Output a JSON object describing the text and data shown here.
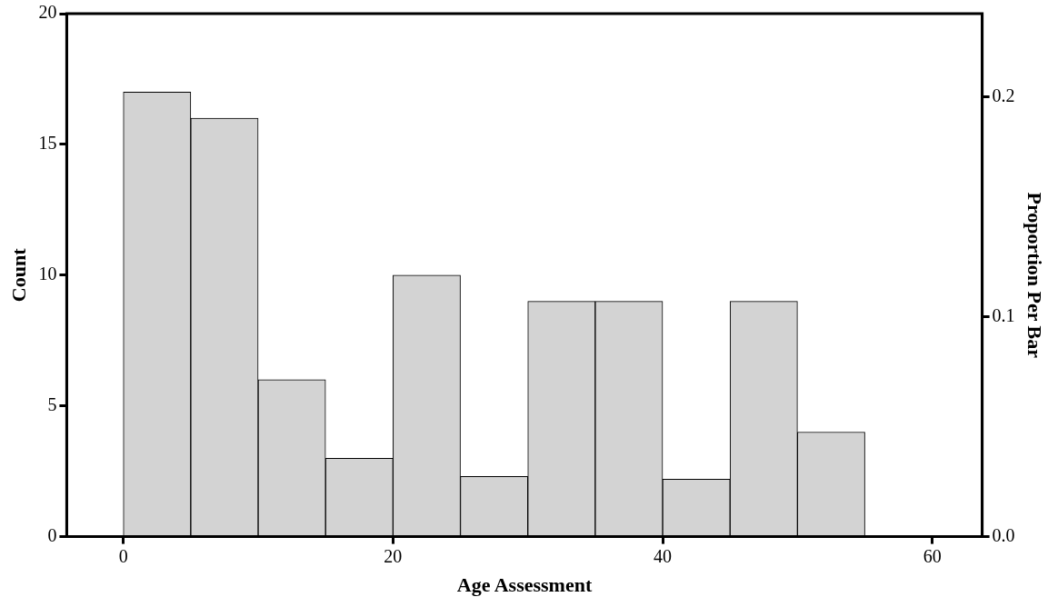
{
  "chart_data": {
    "type": "histogram",
    "xlabel": "Age Assessment",
    "ylabel": "Count",
    "y2label": "Proportion Per Bar",
    "bins": [
      0,
      5,
      10,
      15,
      20,
      25,
      30,
      35,
      40,
      45,
      50,
      55
    ],
    "values": [
      17,
      16,
      6,
      3,
      10,
      2.3,
      9,
      9,
      2.2,
      9,
      4
    ],
    "color": "#d3d3d3",
    "xlim": [
      -4.2,
      63.7
    ],
    "xticks": [
      0,
      20,
      40,
      60
    ],
    "ylim": [
      0,
      20
    ],
    "yticks": [
      0,
      5,
      10,
      15,
      20
    ],
    "y2lim": [
      0,
      0.238
    ],
    "y2ticks": [
      {
        "value": 0,
        "label": "0.0"
      },
      0.1,
      0.2
    ],
    "grid": false,
    "legend": false
  }
}
